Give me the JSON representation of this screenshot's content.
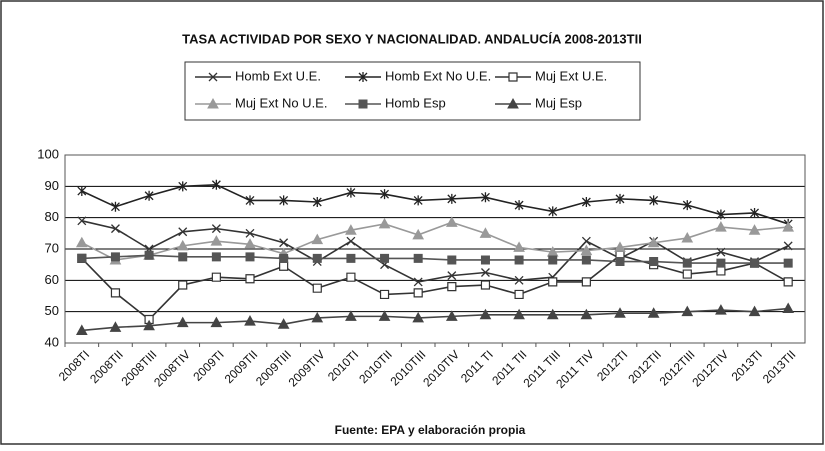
{
  "chart_data": {
    "type": "line",
    "title": "TASA ACTIVIDAD POR SEXO Y NACIONALIDAD. ANDALUCÍA 2008-2013TII",
    "source": "Fuente: EPA y elaboración propia",
    "categories": [
      "2008TI",
      "2008TII",
      "2008TIII",
      "2008TIV",
      "2009TI",
      "2009TII",
      "2009TIII",
      "2009TIV",
      "2010TI",
      "2010TII",
      "2010TIII",
      "2010TIV",
      "2011 TI",
      "2011 TII",
      "2011 TIII",
      "2011 TIV",
      "2012TI",
      "2012TII",
      "2012TIII",
      "2012TIV",
      "2013TI",
      "2013TII"
    ],
    "ylim": [
      40,
      100
    ],
    "yticks": [
      40,
      50,
      60,
      70,
      80,
      90,
      100
    ],
    "grid": true,
    "series": [
      {
        "name": "Homb Ext U.E.",
        "color": "#333333",
        "marker": "x",
        "values": [
          79,
          76.5,
          70,
          75.5,
          76.5,
          75,
          72,
          66,
          72.5,
          65,
          59.5,
          61.5,
          62.5,
          60,
          61,
          72.5,
          67,
          72.5,
          66,
          69,
          66,
          71
        ]
      },
      {
        "name": "Homb Ext No U.E.",
        "color": "#222222",
        "marker": "asterisk",
        "values": [
          88.5,
          83.5,
          87,
          90,
          90.5,
          85.5,
          85.5,
          85,
          88,
          87.5,
          85.5,
          86,
          86.5,
          84,
          82,
          85,
          86,
          85.5,
          84,
          81,
          81.5,
          78
        ]
      },
      {
        "name": "Muj Ext U.E.",
        "color": "#333333",
        "marker": "open-square",
        "values": [
          67,
          56,
          47.5,
          58.5,
          61,
          60.5,
          64.5,
          57.5,
          61,
          55.5,
          56,
          58,
          58.5,
          55.5,
          59.5,
          59.5,
          68,
          65,
          62,
          63,
          65.5,
          59.5
        ]
      },
      {
        "name": "Muj Ext No U.E.",
        "color": "#999999",
        "marker": "triangle",
        "values": [
          72,
          66.5,
          68,
          71,
          72.5,
          71.5,
          68.5,
          73,
          76,
          78,
          74.5,
          78.5,
          75,
          70.5,
          69,
          69.5,
          70.5,
          72,
          73.5,
          77,
          76,
          77
        ]
      },
      {
        "name": "Homb Esp",
        "color": "#555555",
        "marker": "square",
        "values": [
          67,
          67.5,
          68,
          67.5,
          67.5,
          67.5,
          67,
          67,
          67,
          67,
          67,
          66.5,
          66.5,
          66.5,
          66.5,
          66.5,
          66,
          66,
          65.5,
          65.5,
          65.5,
          65.5
        ]
      },
      {
        "name": "Muj Esp",
        "color": "#444444",
        "marker": "triangle",
        "values": [
          44,
          45,
          45.5,
          46.5,
          46.5,
          47,
          46,
          48,
          48.5,
          48.5,
          48,
          48.5,
          49,
          49,
          49,
          49,
          49.5,
          49.5,
          50,
          50.5,
          50,
          51
        ]
      }
    ]
  }
}
